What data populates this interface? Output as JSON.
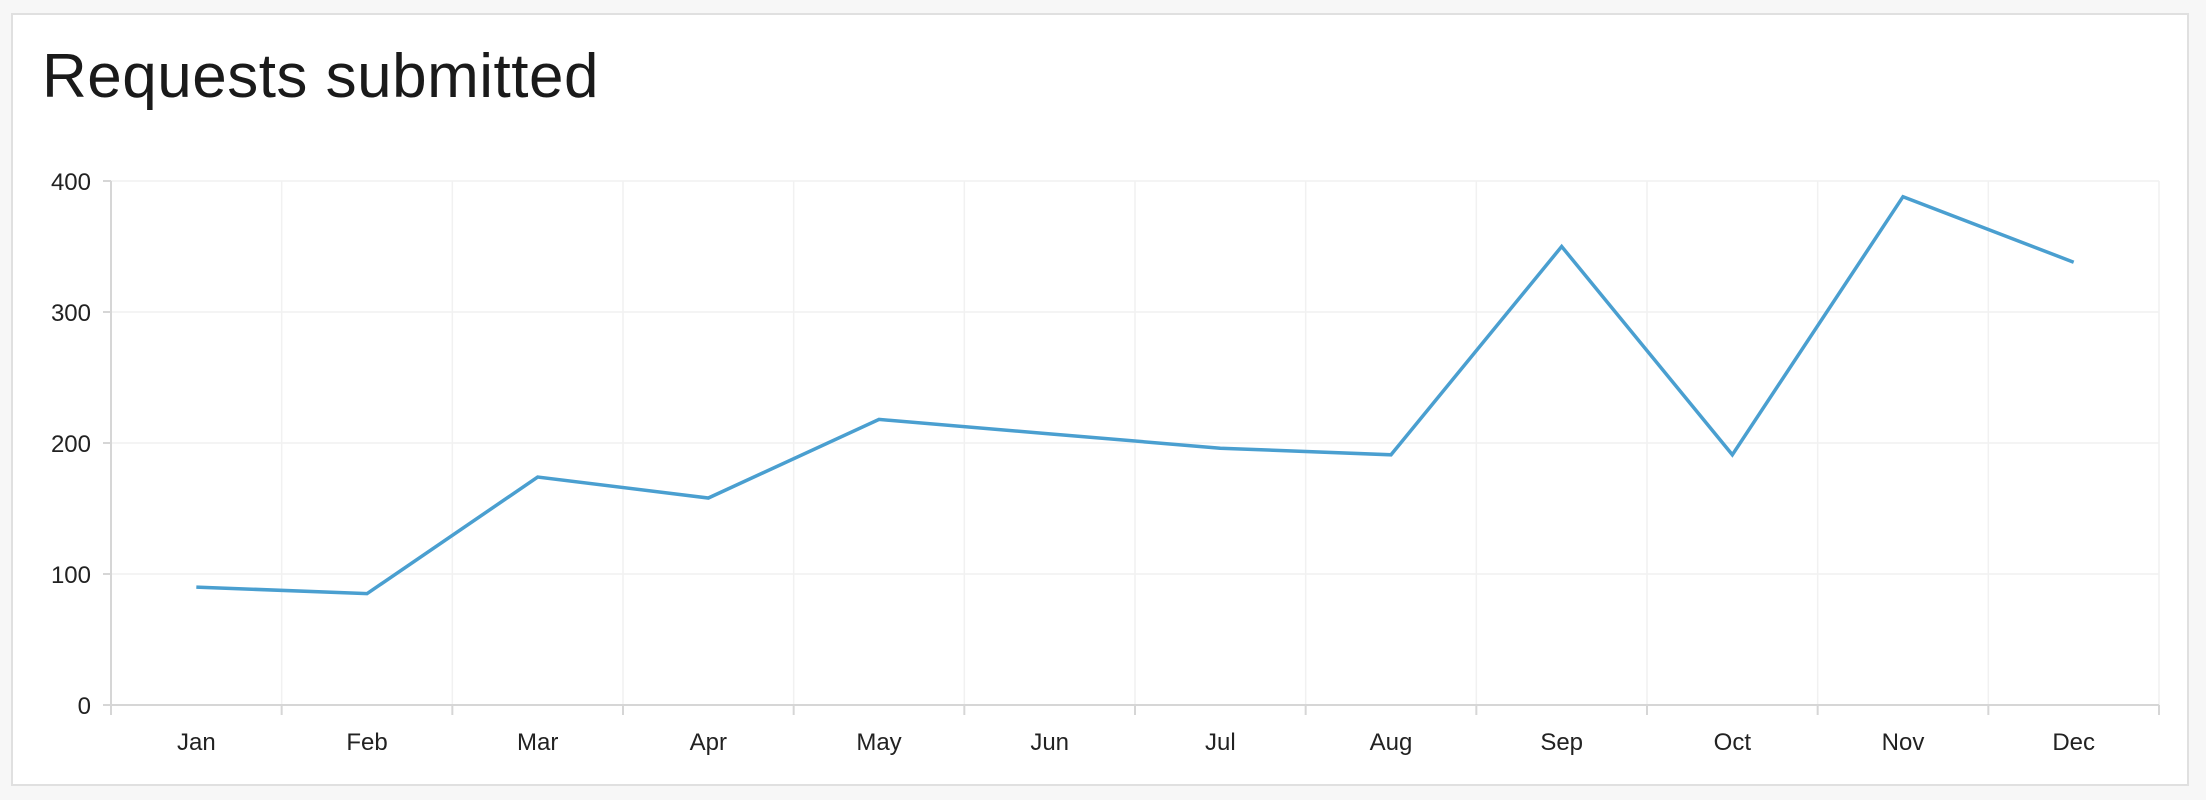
{
  "chart_data": {
    "type": "line",
    "title": "Requests submitted",
    "xlabel": "",
    "ylabel": "",
    "categories": [
      "Jan",
      "Feb",
      "Mar",
      "Apr",
      "May",
      "Jun",
      "Jul",
      "Aug",
      "Sep",
      "Oct",
      "Nov",
      "Dec"
    ],
    "values": [
      90,
      85,
      174,
      158,
      218,
      207,
      196,
      191,
      350,
      191,
      388,
      338
    ],
    "ylim": [
      0,
      400
    ],
    "yticks": [
      0,
      100,
      200,
      300,
      400
    ],
    "grid": true,
    "legend": "none",
    "line_color": "#4a9fd0"
  }
}
